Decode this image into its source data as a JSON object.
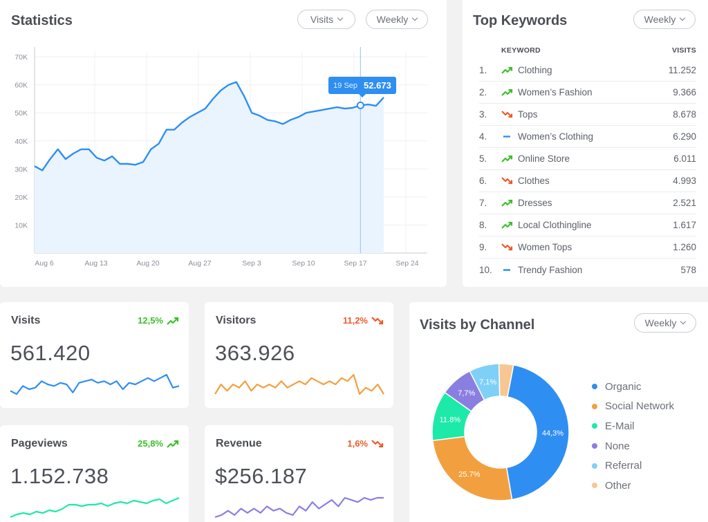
{
  "statistics": {
    "title": "Statistics",
    "metric_select": "Visits",
    "period_select": "Weekly",
    "tooltip": {
      "date": "19 Sep",
      "value": "52.673"
    },
    "chart_data": {
      "type": "area",
      "x_labels": [
        "Aug 6",
        "Aug 13",
        "Aug 20",
        "Aug 27",
        "Sep 3",
        "Sep 10",
        "Sep 17",
        "Sep 24"
      ],
      "y_labels": [
        "70K",
        "60K",
        "50K",
        "40K",
        "30K",
        "20K",
        "10K"
      ],
      "ylim": [
        0,
        70000
      ],
      "color": "#2f8ef2",
      "values": [
        31000,
        29500,
        33500,
        37000,
        33500,
        35500,
        37000,
        37000,
        34000,
        33000,
        34500,
        31800,
        31800,
        31500,
        32500,
        37000,
        39000,
        44000,
        44000,
        46500,
        48500,
        50000,
        51500,
        55000,
        58000,
        60000,
        61000,
        56000,
        50000,
        49000,
        47500,
        47000,
        46000,
        47500,
        48500,
        50000,
        50500,
        51000,
        51500,
        52000,
        51500,
        51800,
        52673,
        53000,
        52500,
        55500
      ],
      "grid": true
    }
  },
  "keywords": {
    "title": "Top Keywords",
    "period_select": "Weekly",
    "col_keyword": "KEYWORD",
    "col_visits": "VISITS",
    "rows": [
      {
        "rank": "1.",
        "name": "Clothing",
        "visits": "11.252",
        "trend": "up"
      },
      {
        "rank": "2.",
        "name": "Women’s Fashion",
        "visits": "9.366",
        "trend": "up"
      },
      {
        "rank": "3.",
        "name": "Tops",
        "visits": "8.678",
        "trend": "down"
      },
      {
        "rank": "4.",
        "name": "Women’s Clothing",
        "visits": "6.290",
        "trend": "flat"
      },
      {
        "rank": "5.",
        "name": "Online Store",
        "visits": "6.011",
        "trend": "up"
      },
      {
        "rank": "6.",
        "name": "Clothes",
        "visits": "4.993",
        "trend": "down"
      },
      {
        "rank": "7.",
        "name": "Dresses",
        "visits": "2.521",
        "trend": "up"
      },
      {
        "rank": "8.",
        "name": "Local Clothingline",
        "visits": "1.617",
        "trend": "up"
      },
      {
        "rank": "9.",
        "name": "Women Tops",
        "visits": "1.260",
        "trend": "down"
      },
      {
        "rank": "10.",
        "name": "Trendy Fashion",
        "visits": "578",
        "trend": "flat"
      }
    ]
  },
  "kpis": [
    {
      "label": "Visits",
      "value": "561.420",
      "change": "12,5%",
      "trend": "up",
      "color": "#2f8ef2",
      "spark": [
        3,
        1,
        6,
        4,
        5,
        9,
        7,
        6,
        8,
        7,
        2,
        8,
        9,
        10,
        8,
        9,
        7,
        9,
        4,
        8,
        7,
        9,
        11,
        9,
        11,
        13,
        5,
        6
      ]
    },
    {
      "label": "Visitors",
      "value": "363.926",
      "change": "11,2%",
      "trend": "down",
      "color": "#f2a03f",
      "spark": [
        4,
        7,
        5,
        7,
        6,
        8,
        5,
        7,
        6,
        7,
        6,
        8,
        6,
        7,
        8,
        7,
        9,
        8,
        7,
        8,
        7,
        9,
        8,
        10,
        4,
        6,
        5,
        7,
        4
      ]
    },
    {
      "label": "Pageviews",
      "value": "1.152.738",
      "change": "25,8%",
      "trend": "up",
      "color": "#1de9a8",
      "spark": [
        2,
        4,
        5,
        4,
        6,
        5,
        7,
        6,
        8,
        11,
        11,
        10,
        11,
        11,
        12,
        10,
        12,
        13,
        12,
        14,
        13,
        12,
        14,
        15,
        12,
        14,
        16
      ]
    },
    {
      "label": "Revenue",
      "value": "$256.187",
      "change": "1,6%",
      "trend": "down",
      "color": "#8a7fe0",
      "spark": [
        3,
        4,
        6,
        4,
        7,
        5,
        7,
        5,
        8,
        6,
        7,
        5,
        4,
        8,
        6,
        10,
        7,
        9,
        11,
        8,
        12,
        11,
        10,
        12,
        11,
        12,
        12
      ]
    }
  ],
  "channels": {
    "title": "Visits by Channel",
    "period_select": "Weekly",
    "chart_data": {
      "type": "pie",
      "slices": [
        {
          "name": "Organic",
          "value": 44.3,
          "label": "44,3%",
          "color": "#2f8ef2"
        },
        {
          "name": "Social Network",
          "value": 25.7,
          "label": "25.7%",
          "color": "#f2a03f"
        },
        {
          "name": "E-Mail",
          "value": 11.8,
          "label": "11.8%",
          "color": "#1de9a8"
        },
        {
          "name": "None",
          "value": 7.7,
          "label": "7,7%",
          "color": "#8a7fe0"
        },
        {
          "name": "Referral",
          "value": 7.1,
          "label": "7,1%",
          "color": "#7fd0f7"
        },
        {
          "name": "Other",
          "value": 3.4,
          "label": "",
          "color": "#f8c690"
        }
      ]
    }
  },
  "colors": {
    "up": "#3cbf2a",
    "down": "#ee5a2b",
    "flat": "#2f8ef2"
  }
}
